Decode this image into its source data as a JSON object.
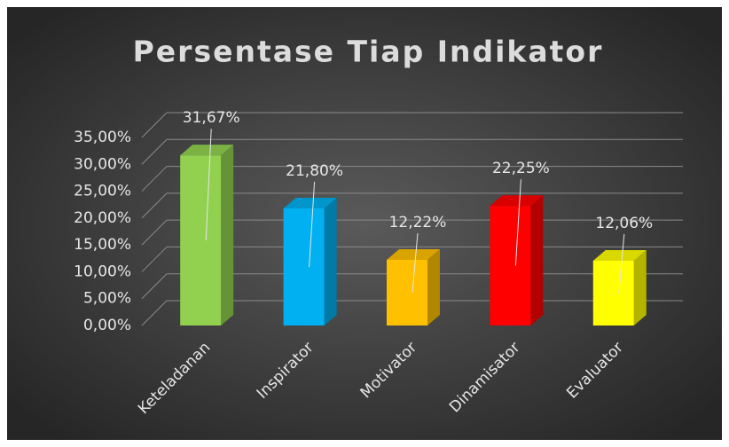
{
  "chart_data": {
    "type": "bar",
    "title": "Persentase Tiap Indikator",
    "categories": [
      "Keteladanan",
      "Inspirator",
      "Motivator",
      "Dinamisator",
      "Evaluator"
    ],
    "values": [
      31.67,
      21.8,
      12.22,
      22.25,
      12.06
    ],
    "value_labels": [
      "31,67%",
      "21,80%",
      "12,22%",
      "22,25%",
      "12,06%"
    ],
    "colors": [
      "#92d050",
      "#00b0f0",
      "#ffc000",
      "#ff0000",
      "#ffff00"
    ],
    "ylim": [
      0,
      35
    ],
    "yticks": [
      {
        "value": 0,
        "label": "0,00%"
      },
      {
        "value": 5,
        "label": "5,00%"
      },
      {
        "value": 10,
        "label": "10,00%"
      },
      {
        "value": 15,
        "label": "15,00%"
      },
      {
        "value": 20,
        "label": "20,00%"
      },
      {
        "value": 25,
        "label": "25,00%"
      },
      {
        "value": 30,
        "label": "30,00%"
      },
      {
        "value": 35,
        "label": "35,00%"
      }
    ],
    "grid": true
  }
}
